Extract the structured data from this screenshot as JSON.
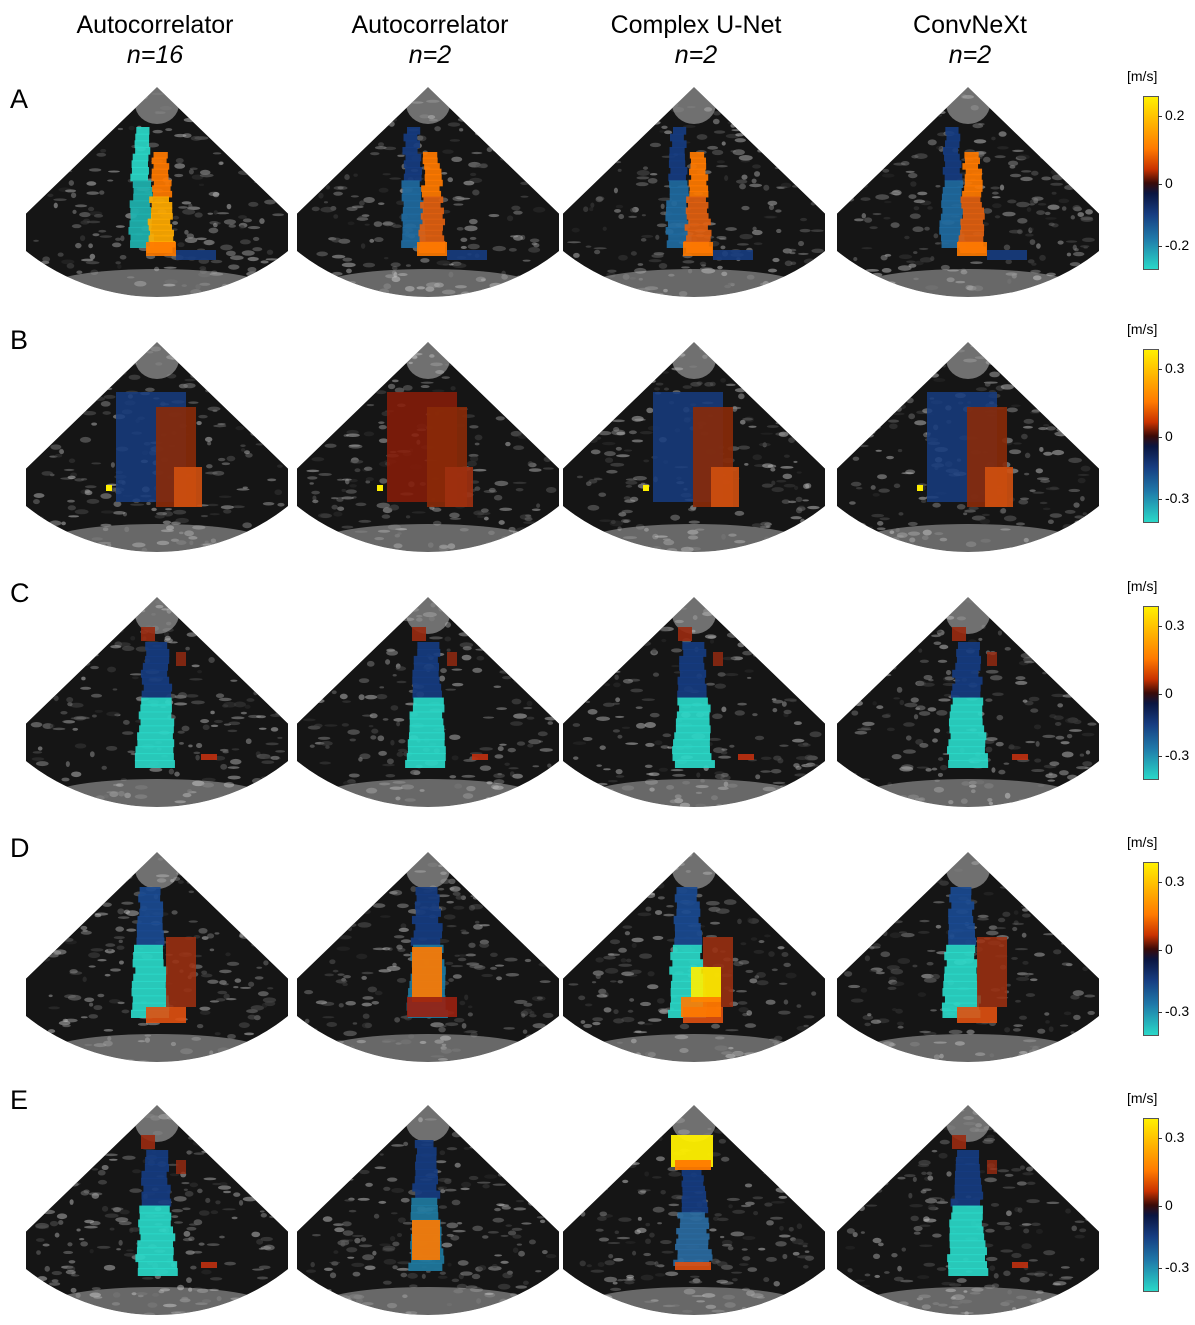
{
  "columns": [
    {
      "title": "Autocorrelator",
      "sub": "n=16"
    },
    {
      "title": "Autocorrelator",
      "sub": "n=2"
    },
    {
      "title": "Complex U-Net",
      "sub": "n=2"
    },
    {
      "title": "ConvNeXt",
      "sub": "n=2"
    }
  ],
  "rows": [
    {
      "label": "A",
      "colorbar": {
        "unit": "[m/s]",
        "ticks": [
          "0.2",
          "0",
          "-0.2"
        ]
      }
    },
    {
      "label": "B",
      "colorbar": {
        "unit": "[m/s]",
        "ticks": [
          "0.3",
          "0",
          "-0.3"
        ]
      }
    },
    {
      "label": "C",
      "colorbar": {
        "unit": "[m/s]",
        "ticks": [
          "0.3",
          "0",
          "-0.3"
        ]
      }
    },
    {
      "label": "D",
      "colorbar": {
        "unit": "[m/s]",
        "ticks": [
          "0.3",
          "0",
          "-0.3"
        ]
      }
    },
    {
      "label": "E",
      "colorbar": {
        "unit": "[m/s]",
        "ticks": [
          "0.3",
          "0",
          "-0.3"
        ]
      }
    }
  ],
  "colors": {
    "positive_max": "#fff000",
    "positive": "#ff7a00",
    "zero": "#2a0a10",
    "negative": "#163c80",
    "negative_max": "#2ad8c8"
  }
}
